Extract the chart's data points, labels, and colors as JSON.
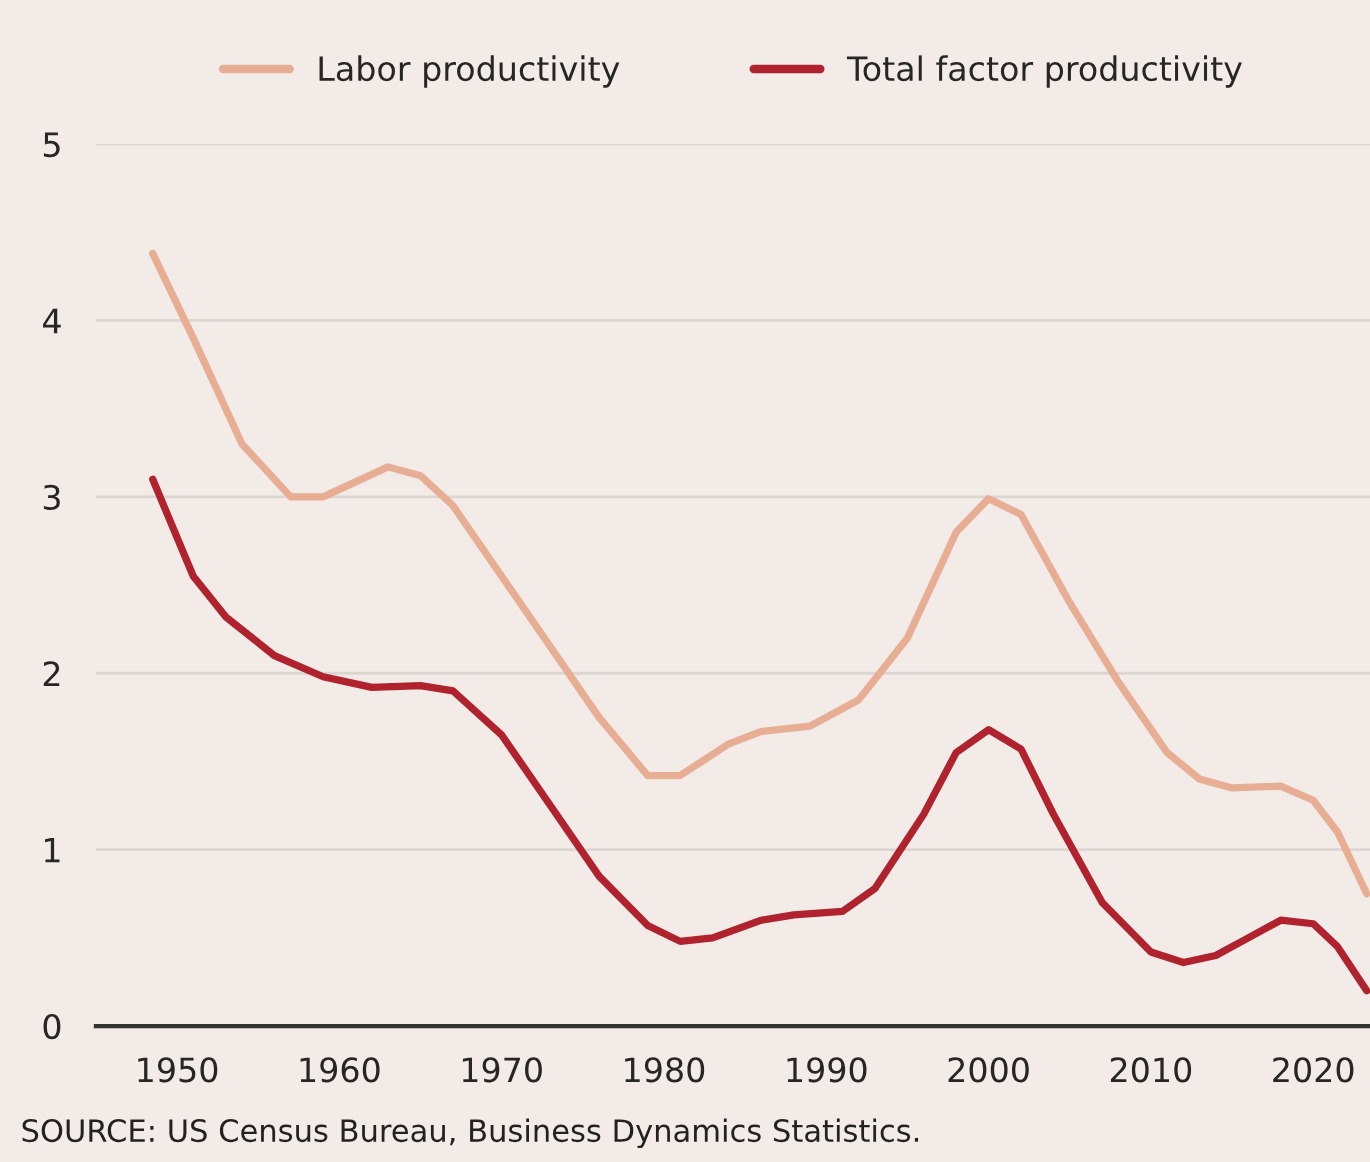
{
  "chart_data": {
    "type": "line",
    "x": [
      1948.5,
      1951,
      1954,
      1957,
      1959,
      1963,
      1965,
      1967,
      1970,
      1973,
      1976,
      1979,
      1981,
      1984,
      1986,
      1989,
      1992,
      1995,
      1998,
      2000,
      2002,
      2005,
      2008,
      2011,
      2013,
      2015,
      2018,
      2020,
      2021.5,
      2023.3
    ],
    "series": [
      {
        "name": "Labor productivity",
        "color": "#e8ae94",
        "values": [
          4.38,
          3.9,
          3.3,
          3.0,
          3.0,
          3.17,
          3.12,
          2.95,
          2.55,
          2.15,
          1.75,
          1.42,
          1.42,
          1.6,
          1.67,
          1.7,
          1.85,
          2.2,
          2.8,
          2.99,
          2.9,
          2.4,
          1.95,
          1.55,
          1.4,
          1.35,
          1.36,
          1.28,
          1.1,
          0.75
        ]
      },
      {
        "name": "Total factor productivity",
        "color": "#b0232e",
        "x": [
          1948.5,
          1951,
          1953,
          1956,
          1959,
          1962,
          1965,
          1967,
          1970,
          1973,
          1976,
          1979,
          1981,
          1983,
          1986,
          1988,
          1991,
          1993,
          1996,
          1998,
          2000,
          2002,
          2004,
          2007,
          2010,
          2012,
          2014,
          2016,
          2018,
          2020,
          2021.5,
          2023.3
        ],
        "values": [
          3.1,
          2.55,
          2.32,
          2.1,
          1.98,
          1.92,
          1.93,
          1.9,
          1.65,
          1.25,
          0.85,
          0.57,
          0.48,
          0.5,
          0.6,
          0.63,
          0.65,
          0.78,
          1.2,
          1.55,
          1.68,
          1.57,
          1.2,
          0.7,
          0.42,
          0.36,
          0.4,
          0.5,
          0.6,
          0.58,
          0.45,
          0.2
        ]
      }
    ],
    "xlim": [
      1945,
      2023.5
    ],
    "xticks": [
      1950,
      1960,
      1970,
      1980,
      1990,
      2000,
      2010,
      2020
    ],
    "ylim": [
      0,
      5
    ],
    "yticks": [
      0,
      1,
      2,
      3,
      4,
      5
    ],
    "grid": "y",
    "legend": "top",
    "line_style": "solid",
    "marker": "none",
    "annotations": [
      "SOURCE: US Census Bureau, Business Dynamics Statistics."
    ]
  }
}
